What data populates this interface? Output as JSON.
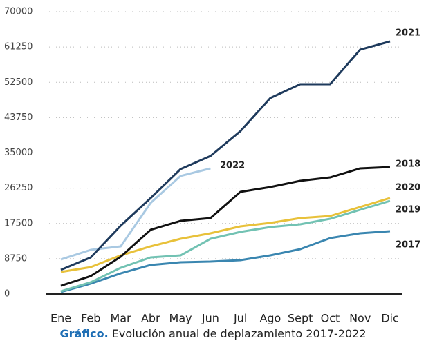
{
  "chart_data": {
    "type": "line",
    "caption_label": "Gráfico.",
    "caption_text": "Evolución anual de deplazamiento 2017-2022",
    "categories": [
      "Ene",
      "Feb",
      "Mar",
      "Abr",
      "May",
      "Jun",
      "Jul",
      "Ago",
      "Sept",
      "Oct",
      "Nov",
      "Dic"
    ],
    "ylim": [
      0,
      70000
    ],
    "yticks": [
      0,
      8750,
      17500,
      26250,
      35000,
      43750,
      52500,
      61250,
      70000
    ],
    "grid": true,
    "series": [
      {
        "name": "2021",
        "color": "#1e3a5c",
        "values": [
          5990,
          9070,
          16940,
          23790,
          30980,
          34230,
          40390,
          48610,
          52030,
          52030,
          60590,
          62640
        ]
      },
      {
        "name": "2022",
        "color": "#a9c9e2",
        "values": [
          8560,
          10950,
          11810,
          22590,
          29270,
          31150,
          null,
          null,
          null,
          null,
          null,
          null
        ]
      },
      {
        "name": "2018",
        "color": "#111111",
        "values": [
          2050,
          4450,
          9240,
          15920,
          18140,
          18830,
          25330,
          26530,
          28070,
          28920,
          31150,
          31490
        ]
      },
      {
        "name": "2020",
        "color": "#e8c13a",
        "values": [
          5480,
          6670,
          9580,
          11810,
          13690,
          15060,
          16770,
          17630,
          18830,
          19340,
          21570,
          23790
        ]
      },
      {
        "name": "2019",
        "color": "#72c2b3",
        "values": [
          680,
          2910,
          6500,
          9070,
          9580,
          13690,
          15400,
          16600,
          17290,
          18650,
          20880,
          23100
        ]
      },
      {
        "name": "2017",
        "color": "#3a86b0",
        "values": [
          510,
          2570,
          5130,
          7190,
          7870,
          8040,
          8390,
          9580,
          11120,
          13860,
          15060,
          15570
        ]
      }
    ]
  }
}
